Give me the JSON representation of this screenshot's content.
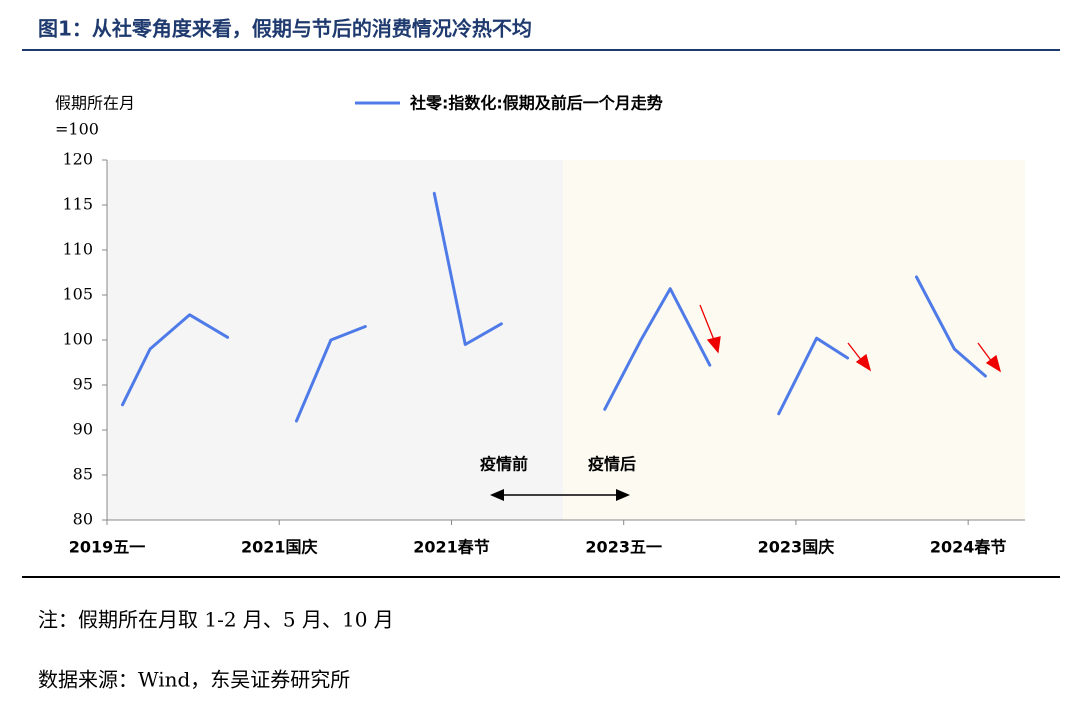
{
  "chart_data": {
    "type": "line",
    "title": "图1：从社零角度来看，假期与节后的消费情况冷热不均",
    "y_label": [
      "假期所在月",
      "=100"
    ],
    "annotations": [
      "疫情前",
      "疫情后"
    ],
    "x": [
      0.09,
      0.25,
      0.48,
      0.7,
      0.85,
      1.1,
      1.3,
      1.5,
      1.7,
      1.9,
      2.08,
      2.29,
      2.6,
      2.89,
      3.1,
      3.27,
      3.5,
      3.7,
      3.9,
      4.12,
      4.3,
      4.5,
      4.7,
      4.92,
      5.1
    ],
    "series": [
      {
        "name": "社零:指数化:假期及前后一个月走势",
        "color": "#4f7be8",
        "values": [
          92.8,
          99,
          102.8,
          100.3,
          null,
          91,
          100,
          101.5,
          null,
          116.3,
          99.5,
          101.8,
          null,
          92.3,
          100,
          105.7,
          97.2,
          null,
          91.8,
          100.2,
          98,
          null,
          107,
          99,
          96
        ]
      }
    ],
    "xlim": [
      0,
      5.33
    ],
    "xticks": [
      {
        "value": 0,
        "label": "2019五一"
      },
      {
        "value": 1,
        "label": "2021国庆"
      },
      {
        "value": 2,
        "label": "2021春节"
      },
      {
        "value": 3,
        "label": "2023五一"
      },
      {
        "value": 4,
        "label": "2023国庆"
      },
      {
        "value": 5,
        "label": "2024春节"
      }
    ],
    "ylim": [
      80,
      120
    ],
    "yticks": [
      80,
      85,
      90,
      95,
      100,
      105,
      110,
      115,
      120
    ],
    "note": "注：假期所在月取 1-2 月、5 月、10 月",
    "source": "数据来源：Wind，东吴证券研究所"
  }
}
